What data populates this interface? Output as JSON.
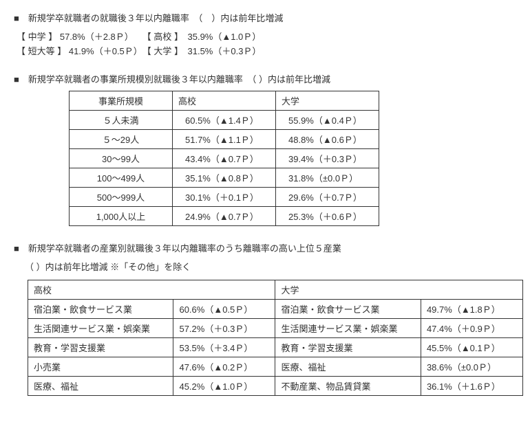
{
  "section1": {
    "title": "■　新規学卒就職者の就職後３年以内離職率　（　）内は前年比増減",
    "line1": "【 中学 】 57.8%（＋2.8Ｐ）　　【 高校 】　35.9%（▲1.0Ｐ）",
    "line2": "【 短大等 】 41.9%（＋0.5Ｐ）　【 大学 】　31.5%（＋0.3Ｐ）"
  },
  "section2": {
    "title": "■　新規学卒就職者の事業所規模別就職後３年以内離職率　（ ）内は前年比増減",
    "columns": [
      "事業所規模",
      "高校",
      "大学"
    ],
    "rows": [
      {
        "a": "５人未満",
        "b": "60.5%（▲1.4Ｐ）",
        "c": "55.9%（▲0.4Ｐ）"
      },
      {
        "a": "５～29人",
        "b": "51.7%（▲1.1Ｐ）",
        "c": "48.8%（▲0.6Ｐ）"
      },
      {
        "a": "30～99人",
        "b": "43.4%（▲0.7Ｐ）",
        "c": "39.4%（＋0.3Ｐ）"
      },
      {
        "a": "100～499人",
        "b": "35.1%（▲0.8Ｐ）",
        "c": "31.8%（±0.0Ｐ）"
      },
      {
        "a": "500～999人",
        "b": "30.1%（＋0.1Ｐ）",
        "c": "29.6%（＋0.7Ｐ）"
      },
      {
        "a": "1,000人以上",
        "b": "24.9%（▲0.7Ｐ）",
        "c": "25.3%（＋0.6Ｐ）"
      }
    ]
  },
  "section3": {
    "title": "■　新規学卒就職者の産業別就職後３年以内離職率のうち離職率の高い上位５産業",
    "note": "（ ）内は前年比増減 ※「その他」を除く",
    "headers": {
      "left": "高校",
      "right": "大学"
    },
    "rows": [
      {
        "ln": "宿泊業・飲食サービス業",
        "lv": "60.6%（▲0.5Ｐ）",
        "rn": "宿泊業・飲食サービス業",
        "rv": "49.7%（▲1.8Ｐ）"
      },
      {
        "ln": "生活関連サービス業・娯楽業",
        "lv": "57.2%（＋0.3Ｐ）",
        "rn": "生活関連サービス業・娯楽業",
        "rv": "47.4%（＋0.9Ｐ）"
      },
      {
        "ln": "教育・学習支援業",
        "lv": "53.5%（＋3.4Ｐ）",
        "rn": "教育・学習支援業",
        "rv": "45.5%（▲0.1Ｐ）"
      },
      {
        "ln": "小売業",
        "lv": "47.6%（▲0.2Ｐ）",
        "rn": "医療、福祉",
        "rv": "38.6%（±0.0Ｐ）"
      },
      {
        "ln": "医療、福祉",
        "lv": "45.2%（▲1.0Ｐ）",
        "rn": "不動産業、物品賃貸業",
        "rv": "36.1%（＋1.6Ｐ）"
      }
    ]
  }
}
